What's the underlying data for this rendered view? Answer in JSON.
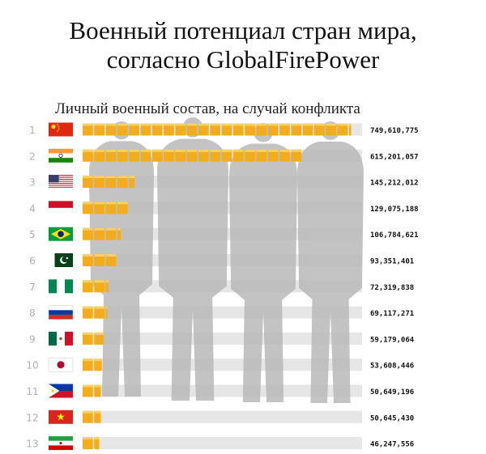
{
  "title": {
    "line1": "Военный потенциал стран мира,",
    "line2": "согласно GlobalFirePower"
  },
  "chart_data": {
    "type": "bar",
    "orientation": "horizontal",
    "subtitle": "Личный военный состав, на случай конфликта",
    "categories": [
      "1",
      "2",
      "3",
      "4",
      "5",
      "6",
      "7",
      "8",
      "9",
      "10",
      "11",
      "12",
      "13"
    ],
    "flags": [
      "China",
      "India",
      "USA",
      "Indonesia",
      "Brazil",
      "Pakistan",
      "Nigeria",
      "Russia",
      "Mexico",
      "Japan",
      "Philippines",
      "Vietnam",
      "Iran"
    ],
    "values": [
      749610775,
      615201057,
      145212012,
      129075188,
      106784621,
      93351401,
      72319838,
      69117271,
      59179064,
      53608446,
      50649196,
      50645430,
      46247556
    ],
    "value_labels": [
      "749,610,775",
      "615,201,057",
      "145,212,012",
      "129,075,188",
      "106,784,621",
      "93,351,401",
      "72,319,838",
      "69,117,271",
      "59,179,064",
      "53,608,446",
      "50,649,196",
      "50,645,430",
      "46,247,556"
    ],
    "xlim": [
      0,
      780000000
    ],
    "colors": {
      "bar": "#f2ad1c",
      "track": "#e6e6e6",
      "silhouette": "#b9b9b9",
      "rank": "#b0b0b0",
      "label": "#111111"
    }
  }
}
